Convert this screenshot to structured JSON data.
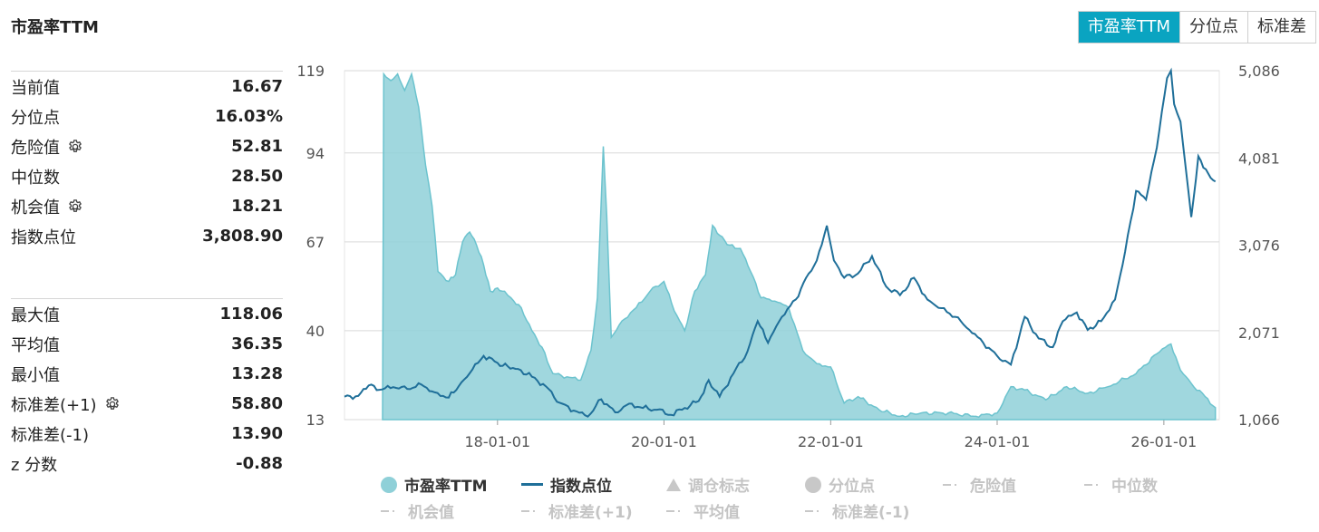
{
  "header": {
    "title": "市盈率TTM"
  },
  "tabs": [
    {
      "label": "市盈率TTM",
      "active": true
    },
    {
      "label": "分位点",
      "active": false
    },
    {
      "label": "标准差",
      "active": false
    }
  ],
  "stats_top": [
    {
      "label": "当前值",
      "value": "16.67",
      "gear": false
    },
    {
      "label": "分位点",
      "value": "16.03%",
      "gear": false
    },
    {
      "label": "危险值",
      "value": "52.81",
      "gear": true
    },
    {
      "label": "中位数",
      "value": "28.50",
      "gear": false
    },
    {
      "label": "机会值",
      "value": "18.21",
      "gear": true
    },
    {
      "label": "指数点位",
      "value": "3,808.90",
      "gear": false
    }
  ],
  "stats_bottom": [
    {
      "label": "最大值",
      "value": "118.06",
      "gear": false
    },
    {
      "label": "平均值",
      "value": "36.35",
      "gear": false
    },
    {
      "label": "最小值",
      "value": "13.28",
      "gear": false
    },
    {
      "label": "标准差(+1)",
      "value": "58.80",
      "gear": true
    },
    {
      "label": "标准差(-1)",
      "value": "13.90",
      "gear": false
    },
    {
      "label": "z 分数",
      "value": "-0.88",
      "gear": false
    }
  ],
  "colors": {
    "area": "#8fd0d8",
    "area_stroke": "#6cc3ce",
    "line": "#1f6f99",
    "accent": "#0aa4c1",
    "grid": "#d9d9d9"
  },
  "chart_data": {
    "type": "line",
    "x_tick_labels": [
      "18-01-01",
      "20-01-01",
      "22-01-01",
      "24-01-01",
      "26-01-01"
    ],
    "y_left_ticks": [
      "13",
      "40",
      "67",
      "94",
      "119"
    ],
    "y_right_ticks": [
      "1,066",
      "2,071",
      "3,076",
      "4,081",
      "5,086"
    ],
    "y_left_range": [
      13,
      119
    ],
    "y_right_range": [
      1066,
      5086
    ],
    "x_range": [
      "2016-03-01",
      "2026-09-01"
    ],
    "series": [
      {
        "name": "市盈率TTM",
        "kind": "area",
        "axis": "left",
        "points": [
          [
            "2016-08-15",
            13
          ],
          [
            "2016-08-20",
            118
          ],
          [
            "2016-09-20",
            116
          ],
          [
            "2016-10-20",
            118
          ],
          [
            "2016-11-20",
            113
          ],
          [
            "2016-12-20",
            118
          ],
          [
            "2017-01-20",
            108
          ],
          [
            "2017-02-20",
            90
          ],
          [
            "2017-03-20",
            78
          ],
          [
            "2017-04-15",
            58
          ],
          [
            "2017-06-01",
            55
          ],
          [
            "2017-07-01",
            57
          ],
          [
            "2017-08-01",
            67
          ],
          [
            "2017-09-01",
            70
          ],
          [
            "2017-10-01",
            66
          ],
          [
            "2017-11-01",
            60
          ],
          [
            "2017-12-01",
            52
          ],
          [
            "2018-01-01",
            53
          ],
          [
            "2018-02-01",
            52
          ],
          [
            "2018-03-01",
            50
          ],
          [
            "2018-04-15",
            47
          ],
          [
            "2018-06-01",
            40
          ],
          [
            "2018-07-15",
            35
          ],
          [
            "2018-09-01",
            27
          ],
          [
            "2018-11-01",
            26
          ],
          [
            "2019-01-01",
            25
          ],
          [
            "2019-02-15",
            34
          ],
          [
            "2019-03-15",
            50
          ],
          [
            "2019-04-10",
            96
          ],
          [
            "2019-04-25",
            75
          ],
          [
            "2019-05-15",
            38
          ],
          [
            "2019-07-01",
            43
          ],
          [
            "2019-09-01",
            47
          ],
          [
            "2019-11-01",
            52
          ],
          [
            "2020-01-01",
            55
          ],
          [
            "2020-02-15",
            46
          ],
          [
            "2020-04-01",
            40
          ],
          [
            "2020-05-15",
            52
          ],
          [
            "2020-07-01",
            57
          ],
          [
            "2020-08-01",
            72
          ],
          [
            "2020-09-01",
            69
          ],
          [
            "2020-10-15",
            66
          ],
          [
            "2020-12-01",
            65
          ],
          [
            "2021-01-15",
            58
          ],
          [
            "2021-03-01",
            50
          ],
          [
            "2021-05-01",
            49
          ],
          [
            "2021-07-01",
            47
          ],
          [
            "2021-09-01",
            34
          ],
          [
            "2021-11-01",
            30
          ],
          [
            "2022-01-01",
            29
          ],
          [
            "2022-03-01",
            18
          ],
          [
            "2022-05-01",
            20
          ],
          [
            "2022-08-01",
            16
          ],
          [
            "2022-11-01",
            14
          ],
          [
            "2023-02-01",
            15
          ],
          [
            "2023-06-01",
            15
          ],
          [
            "2023-10-01",
            14
          ],
          [
            "2024-01-01",
            15
          ],
          [
            "2024-03-01",
            23
          ],
          [
            "2024-05-01",
            22
          ],
          [
            "2024-08-01",
            19
          ],
          [
            "2024-11-01",
            23
          ],
          [
            "2025-02-01",
            21
          ],
          [
            "2025-05-01",
            23
          ],
          [
            "2025-09-01",
            27
          ],
          [
            "2025-12-01",
            33
          ],
          [
            "2026-02-01",
            36
          ],
          [
            "2026-03-15",
            28
          ],
          [
            "2026-05-01",
            24
          ],
          [
            "2026-07-01",
            20
          ],
          [
            "2026-08-15",
            16.67
          ]
        ]
      },
      {
        "name": "指数点位",
        "kind": "line",
        "axis": "right",
        "points": [
          [
            "2016-03-01",
            1330
          ],
          [
            "2016-05-01",
            1340
          ],
          [
            "2016-06-15",
            1460
          ],
          [
            "2016-08-01",
            1410
          ],
          [
            "2016-10-01",
            1440
          ],
          [
            "2016-12-01",
            1420
          ],
          [
            "2017-02-01",
            1470
          ],
          [
            "2017-04-01",
            1380
          ],
          [
            "2017-06-01",
            1320
          ],
          [
            "2017-07-15",
            1450
          ],
          [
            "2017-09-01",
            1600
          ],
          [
            "2017-11-01",
            1800
          ],
          [
            "2018-01-01",
            1720
          ],
          [
            "2018-02-15",
            1680
          ],
          [
            "2018-04-01",
            1650
          ],
          [
            "2018-06-01",
            1560
          ],
          [
            "2018-08-01",
            1450
          ],
          [
            "2018-10-01",
            1260
          ],
          [
            "2018-12-01",
            1170
          ],
          [
            "2019-02-01",
            1100
          ],
          [
            "2019-04-01",
            1300
          ],
          [
            "2019-06-01",
            1150
          ],
          [
            "2019-08-01",
            1250
          ],
          [
            "2019-10-01",
            1200
          ],
          [
            "2019-12-01",
            1180
          ],
          [
            "2020-02-01",
            1120
          ],
          [
            "2020-04-01",
            1200
          ],
          [
            "2020-06-01",
            1280
          ],
          [
            "2020-07-15",
            1520
          ],
          [
            "2020-09-01",
            1330
          ],
          [
            "2020-11-01",
            1600
          ],
          [
            "2021-01-01",
            1850
          ],
          [
            "2021-02-15",
            2200
          ],
          [
            "2021-04-01",
            1950
          ],
          [
            "2021-06-01",
            2250
          ],
          [
            "2021-08-01",
            2450
          ],
          [
            "2021-09-15",
            2700
          ],
          [
            "2021-11-01",
            2900
          ],
          [
            "2021-12-15",
            3300
          ],
          [
            "2022-01-15",
            2900
          ],
          [
            "2022-03-01",
            2700
          ],
          [
            "2022-05-01",
            2750
          ],
          [
            "2022-07-01",
            2950
          ],
          [
            "2022-09-01",
            2600
          ],
          [
            "2022-11-01",
            2500
          ],
          [
            "2023-01-01",
            2700
          ],
          [
            "2023-03-01",
            2450
          ],
          [
            "2023-05-01",
            2350
          ],
          [
            "2023-07-01",
            2250
          ],
          [
            "2023-09-01",
            2100
          ],
          [
            "2023-11-01",
            1950
          ],
          [
            "2024-01-01",
            1800
          ],
          [
            "2024-03-01",
            1700
          ],
          [
            "2024-05-01",
            2250
          ],
          [
            "2024-07-01",
            2000
          ],
          [
            "2024-09-01",
            1900
          ],
          [
            "2024-10-15",
            2200
          ],
          [
            "2024-12-15",
            2300
          ],
          [
            "2025-02-01",
            2100
          ],
          [
            "2025-04-01",
            2200
          ],
          [
            "2025-06-01",
            2450
          ],
          [
            "2025-07-15",
            3000
          ],
          [
            "2025-09-01",
            3700
          ],
          [
            "2025-10-15",
            3600
          ],
          [
            "2025-12-01",
            4200
          ],
          [
            "2026-01-15",
            5000
          ],
          [
            "2026-02-01",
            5086
          ],
          [
            "2026-02-15",
            4700
          ],
          [
            "2026-03-15",
            4500
          ],
          [
            "2026-05-01",
            3400
          ],
          [
            "2026-06-01",
            4100
          ],
          [
            "2026-07-15",
            3900
          ],
          [
            "2026-08-15",
            3808.9
          ]
        ]
      }
    ]
  },
  "legend": [
    {
      "label": "市盈率TTM",
      "swatch": "circle",
      "active": true
    },
    {
      "label": "指数点位",
      "swatch": "line",
      "active": true
    },
    {
      "label": "调仓标志",
      "swatch": "triangle",
      "active": false
    },
    {
      "label": "分位点",
      "swatch": "circle",
      "active": false
    },
    {
      "label": "危险值",
      "swatch": "dash",
      "active": false
    },
    {
      "label": "中位数",
      "swatch": "dash",
      "active": false
    },
    {
      "label": "机会值",
      "swatch": "dash",
      "active": false
    },
    {
      "label": "标准差(+1)",
      "swatch": "dash",
      "active": false
    },
    {
      "label": "平均值",
      "swatch": "dash",
      "active": false
    },
    {
      "label": "标准差(-1)",
      "swatch": "dash",
      "active": false
    }
  ]
}
